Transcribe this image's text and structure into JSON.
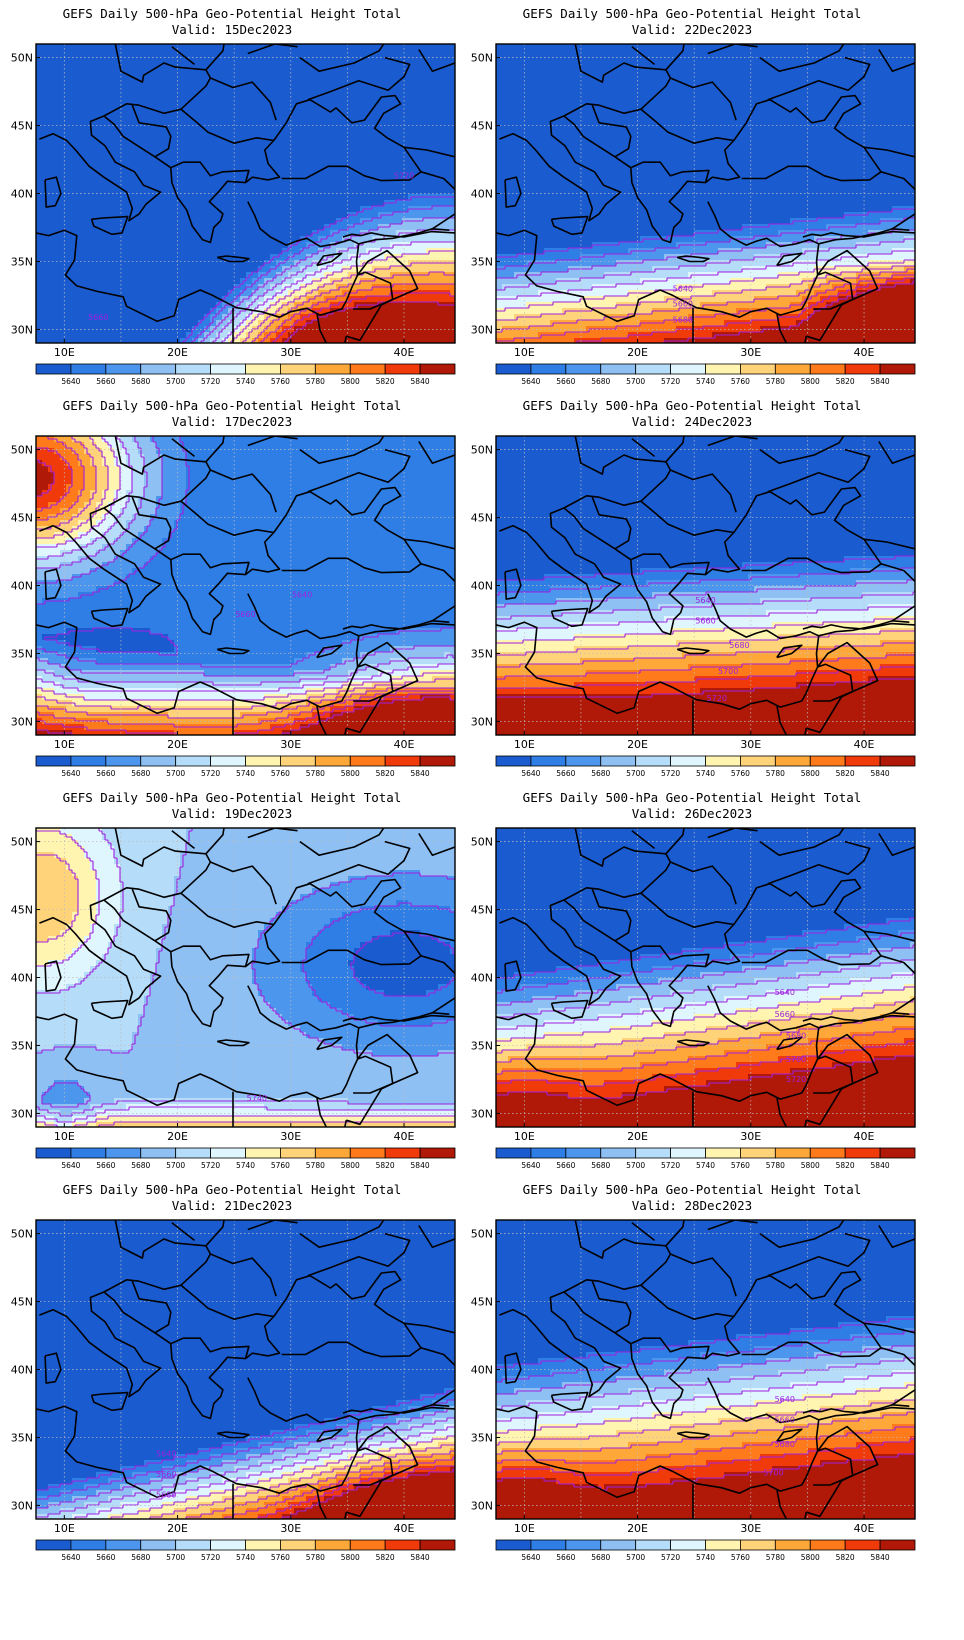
{
  "common": {
    "colorbar_levels": [
      "5640",
      "5660",
      "5680",
      "5700",
      "5720",
      "5740",
      "5760",
      "5780",
      "5800",
      "5820",
      "5840"
    ],
    "colors": [
      "#1a5cd0",
      "#2f7ee6",
      "#4d96ee",
      "#8ec0f4",
      "#b5dcf9",
      "#e0f6ff",
      "#fff4b0",
      "#ffd37a",
      "#ffa83a",
      "#ff7a1a",
      "#f03a0a",
      "#b01808"
    ],
    "contour_color": "#a020e0",
    "lat_labels": [
      "50N",
      "45N",
      "40N",
      "35N",
      "30N"
    ],
    "lon_labels": [
      "10E",
      "20E",
      "30E",
      "40E"
    ]
  },
  "panels": [
    {
      "title": "GEFS Daily 500-hPa Geo-Potential Height Total",
      "valid": "Valid: 15Dec2023",
      "labels": [
        {
          "text": "5720",
          "lon": 40,
          "lat": 41.1
        },
        {
          "text": "5660",
          "lon": 13,
          "lat": 30.7
        }
      ]
    },
    {
      "title": "GEFS Daily 500-hPa Geo-Potential Height Total",
      "valid": "Valid: 22Dec2023",
      "labels": [
        {
          "text": "5640",
          "lon": 24,
          "lat": 32.8
        },
        {
          "text": "5660",
          "lon": 24,
          "lat": 31.7
        },
        {
          "text": "5680",
          "lon": 24,
          "lat": 30.5
        }
      ]
    },
    {
      "title": "GEFS Daily 500-hPa Geo-Potential Height Total",
      "valid": "Valid: 17Dec2023",
      "labels": [
        {
          "text": "5640",
          "lon": 31,
          "lat": 39.1
        },
        {
          "text": "5660",
          "lon": 26,
          "lat": 37.7
        }
      ]
    },
    {
      "title": "GEFS Daily 500-hPa Geo-Potential Height Total",
      "valid": "Valid: 24Dec2023",
      "labels": [
        {
          "text": "5640",
          "lon": 26,
          "lat": 38.7
        },
        {
          "text": "5660",
          "lon": 26,
          "lat": 37.2
        },
        {
          "text": "5680",
          "lon": 29,
          "lat": 35.4
        },
        {
          "text": "5700",
          "lon": 28,
          "lat": 33.5
        },
        {
          "text": "5720",
          "lon": 27,
          "lat": 31.5
        }
      ]
    },
    {
      "title": "GEFS Daily 500-hPa Geo-Potential Height Total",
      "valid": "Valid: 19Dec2023",
      "labels": [
        {
          "text": "5740",
          "lon": 27,
          "lat": 30.9
        }
      ]
    },
    {
      "title": "GEFS Daily 500-hPa Geo-Potential Height Total",
      "valid": "Valid: 26Dec2023",
      "labels": [
        {
          "text": "5640",
          "lon": 33,
          "lat": 38.7
        },
        {
          "text": "5660",
          "lon": 33,
          "lat": 37.1
        },
        {
          "text": "5680",
          "lon": 34,
          "lat": 35.5
        },
        {
          "text": "5700",
          "lon": 34,
          "lat": 33.8
        },
        {
          "text": "5720",
          "lon": 34,
          "lat": 32.3
        }
      ]
    },
    {
      "title": "GEFS Daily 500-hPa Geo-Potential Height Total",
      "valid": "Valid: 21Dec2023",
      "labels": [
        {
          "text": "5640",
          "lon": 19,
          "lat": 33.6
        },
        {
          "text": "5660",
          "lon": 19,
          "lat": 32.1
        },
        {
          "text": "5680",
          "lon": 19,
          "lat": 30.6
        }
      ]
    },
    {
      "title": "GEFS Daily 500-hPa Geo-Potential Height Total",
      "valid": "Valid: 28Dec2023",
      "labels": [
        {
          "text": "5640",
          "lon": 33,
          "lat": 37.6
        },
        {
          "text": "5660",
          "lon": 33,
          "lat": 36.1
        },
        {
          "text": "5680",
          "lon": 33,
          "lat": 34.3
        },
        {
          "text": "5700",
          "lon": 32,
          "lat": 32.2
        }
      ]
    }
  ]
}
